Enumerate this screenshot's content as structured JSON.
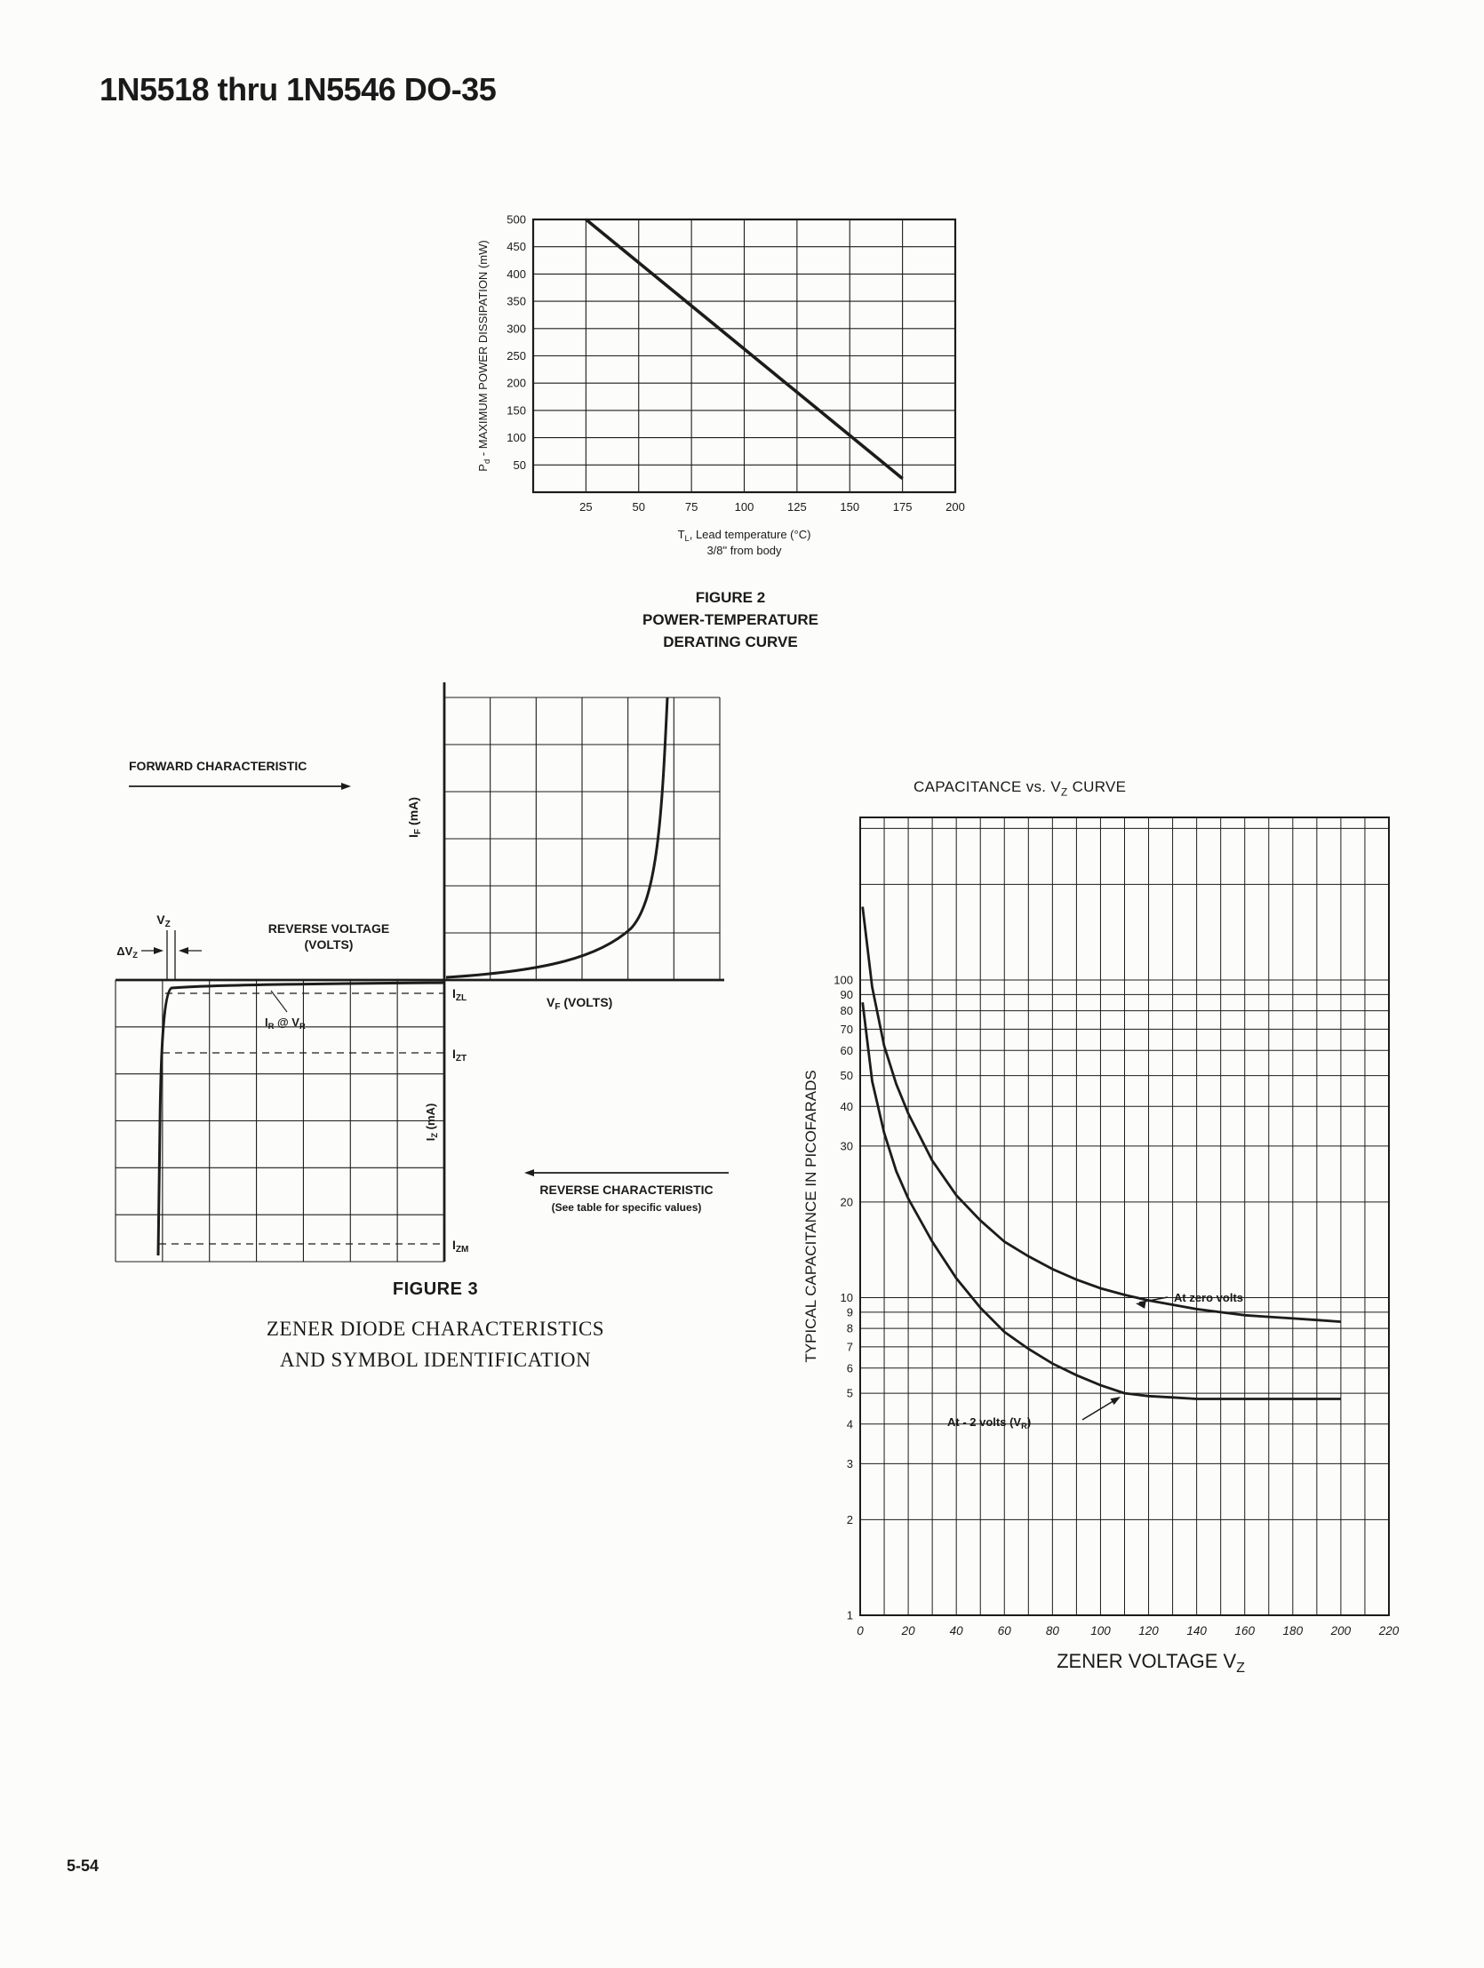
{
  "page": {
    "title": "1N5518 thru 1N5546 DO-35",
    "page_number": "5-54"
  },
  "figure2": {
    "caption_lines": [
      "FIGURE 2",
      "POWER-TEMPERATURE",
      "DERATING CURVE"
    ]
  },
  "figure3": {
    "caption": "FIGURE 3",
    "subtitle_lines": [
      "ZENER DIODE CHARACTERISTICS",
      "AND SYMBOL IDENTIFICATION"
    ],
    "labels": {
      "forward_characteristic": "FORWARD CHARACTERISTIC",
      "reverse_voltage_line1": "REVERSE VOLTAGE",
      "reverse_voltage_line2": "(VOLTS)",
      "if_axis": "I~F~ (mA)",
      "vf_axis": "V~F~ (VOLTS)",
      "iz_axis": "I~Z~ (mA)",
      "izl": "I~ZL~",
      "izt": "I~ZT~",
      "izm": "I~ZM~",
      "vz": "V~Z~",
      "delta_vz": "ΔV~Z~",
      "ir_at_vr": "I~R~ @ V~R~",
      "reverse_characteristic": "REVERSE CHARACTERISTIC",
      "reverse_characteristic_note": "(See table for specific values)"
    }
  },
  "chart_data": [
    {
      "id": "power-temperature-derating",
      "type": "line",
      "title": "FIGURE 2 POWER-TEMPERATURE DERATING CURVE",
      "xlabel_lines": [
        "T~L~, Lead temperature (°C)",
        "3/8\" from body"
      ],
      "ylabel": "P~d~ - MAXIMUM POWER DISSIPATION (mW)",
      "xlim": [
        0,
        200
      ],
      "ylim": [
        0,
        500
      ],
      "x_ticks": [
        25,
        50,
        75,
        100,
        125,
        150,
        175,
        200
      ],
      "y_ticks": [
        50,
        100,
        150,
        200,
        250,
        300,
        350,
        400,
        450,
        500
      ],
      "grid": true,
      "legend": "none",
      "series": [
        {
          "name": "derating-line",
          "points": [
            [
              25,
              500
            ],
            [
              175,
              25
            ]
          ]
        }
      ]
    },
    {
      "id": "capacitance-vs-vz",
      "type": "line",
      "title": "CAPACITANCE vs. V~Z~ CURVE",
      "xlabel": "ZENER VOLTAGE V~Z~",
      "ylabel": "TYPICAL CAPACITANCE IN PICOFARADS",
      "xlim": [
        0,
        220
      ],
      "ylim": [
        1,
        325
      ],
      "y_scale": "log",
      "x_ticks": [
        0,
        20,
        40,
        60,
        80,
        100,
        120,
        140,
        160,
        180,
        200,
        220
      ],
      "y_ticks": [
        1,
        2,
        3,
        4,
        5,
        6,
        7,
        8,
        9,
        10,
        20,
        30,
        40,
        50,
        60,
        70,
        80,
        90,
        100
      ],
      "grid": true,
      "legend": "inline-annotations",
      "series": [
        {
          "name": "At zero volts",
          "points": [
            [
              1,
              170
            ],
            [
              5,
              95
            ],
            [
              10,
              62
            ],
            [
              15,
              47
            ],
            [
              20,
              38
            ],
            [
              30,
              27
            ],
            [
              40,
              21
            ],
            [
              50,
              17.5
            ],
            [
              60,
              15
            ],
            [
              70,
              13.5
            ],
            [
              80,
              12.3
            ],
            [
              90,
              11.4
            ],
            [
              100,
              10.7
            ],
            [
              110,
              10.2
            ],
            [
              120,
              9.8
            ],
            [
              130,
              9.5
            ],
            [
              140,
              9.2
            ],
            [
              150,
              9
            ],
            [
              160,
              8.8
            ],
            [
              170,
              8.7
            ],
            [
              180,
              8.6
            ],
            [
              190,
              8.5
            ],
            [
              200,
              8.4
            ]
          ]
        },
        {
          "name": "At - 2 volts (V~R~)",
          "points": [
            [
              1,
              85
            ],
            [
              5,
              48
            ],
            [
              10,
              33
            ],
            [
              15,
              25
            ],
            [
              20,
              20.5
            ],
            [
              30,
              15
            ],
            [
              40,
              11.5
            ],
            [
              50,
              9.3
            ],
            [
              60,
              7.8
            ],
            [
              70,
              6.9
            ],
            [
              80,
              6.2
            ],
            [
              90,
              5.7
            ],
            [
              100,
              5.3
            ],
            [
              110,
              5
            ],
            [
              120,
              4.9
            ],
            [
              130,
              4.85
            ],
            [
              140,
              4.8
            ],
            [
              150,
              4.8
            ],
            [
              160,
              4.8
            ],
            [
              170,
              4.8
            ],
            [
              180,
              4.8
            ],
            [
              190,
              4.8
            ],
            [
              200,
              4.8
            ]
          ]
        }
      ]
    }
  ]
}
